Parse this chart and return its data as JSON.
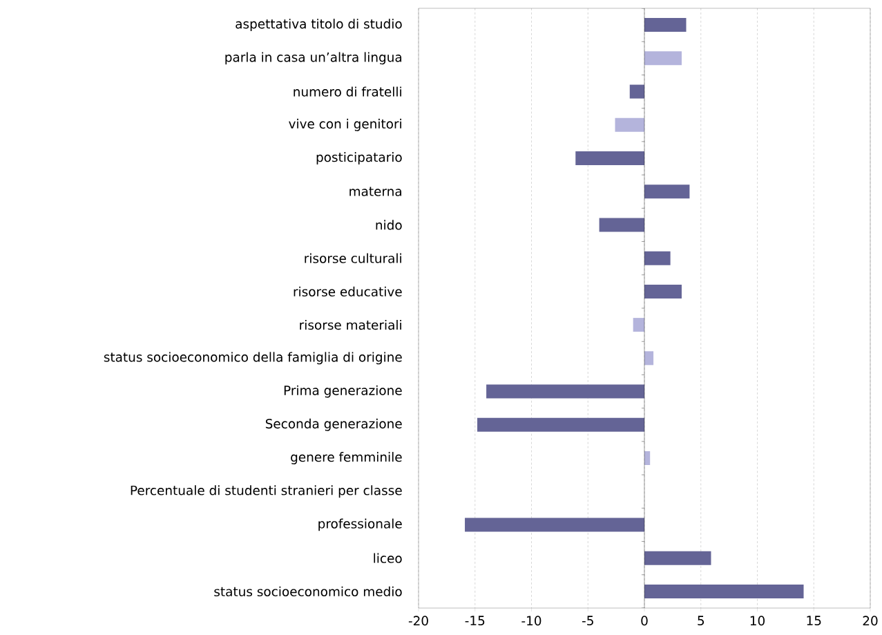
{
  "chart_data": {
    "type": "bar",
    "orientation": "horizontal",
    "categories": [
      "aspettativa titolo di studio",
      "parla in casa un’altra lingua",
      "numero di fratelli",
      "vive con i genitori",
      "posticipatario",
      "materna",
      "nido",
      "risorse culturali",
      "risorse educative",
      "risorse materiali",
      "status socioeconomico della famiglia di origine",
      "Prima generazione",
      "Seconda generazione",
      "genere femminile",
      "Percentuale di studenti stranieri per classe",
      "professionale",
      "liceo",
      "status socioeconomico medio"
    ],
    "series": [
      {
        "color": "#646496",
        "values": [
          3.7,
          null,
          -1.3,
          null,
          -6.1,
          4.0,
          -4.0,
          2.3,
          3.3,
          null,
          null,
          -14.0,
          -14.8,
          null,
          null,
          -15.9,
          5.9,
          14.1
        ]
      },
      {
        "color": "#b4b4dc",
        "values": [
          null,
          3.3,
          null,
          -2.6,
          null,
          null,
          null,
          null,
          null,
          -1.0,
          0.8,
          null,
          null,
          0.5,
          null,
          null,
          null,
          null
        ]
      }
    ],
    "xlim": [
      -20,
      20
    ],
    "xticks": [
      -20,
      -15,
      -10,
      -5,
      0,
      5,
      10,
      15,
      20
    ],
    "grid": "x"
  }
}
